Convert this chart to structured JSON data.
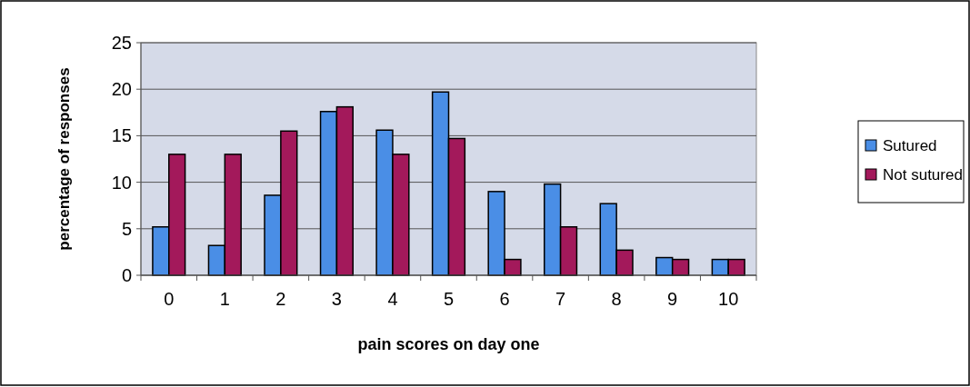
{
  "chart_data": {
    "type": "bar",
    "xlabel": "pain scores on day one",
    "ylabel": "percentage of responses",
    "categories": [
      "0",
      "1",
      "2",
      "3",
      "4",
      "5",
      "6",
      "7",
      "8",
      "9",
      "10"
    ],
    "series": [
      {
        "name": "Sutured",
        "color": "#4a8ee6",
        "values": [
          5.2,
          3.2,
          8.6,
          17.6,
          15.6,
          19.7,
          9.0,
          9.8,
          7.7,
          1.9,
          1.7
        ]
      },
      {
        "name": "Not sutured",
        "color": "#a3195b",
        "values": [
          13.0,
          13.0,
          15.5,
          18.1,
          13.0,
          14.7,
          1.7,
          5.2,
          2.7,
          1.7,
          1.7
        ]
      }
    ],
    "ylim": [
      0,
      25
    ],
    "yticks": [
      0,
      5,
      10,
      15,
      20,
      25
    ],
    "grid": "y",
    "legend": "right"
  }
}
